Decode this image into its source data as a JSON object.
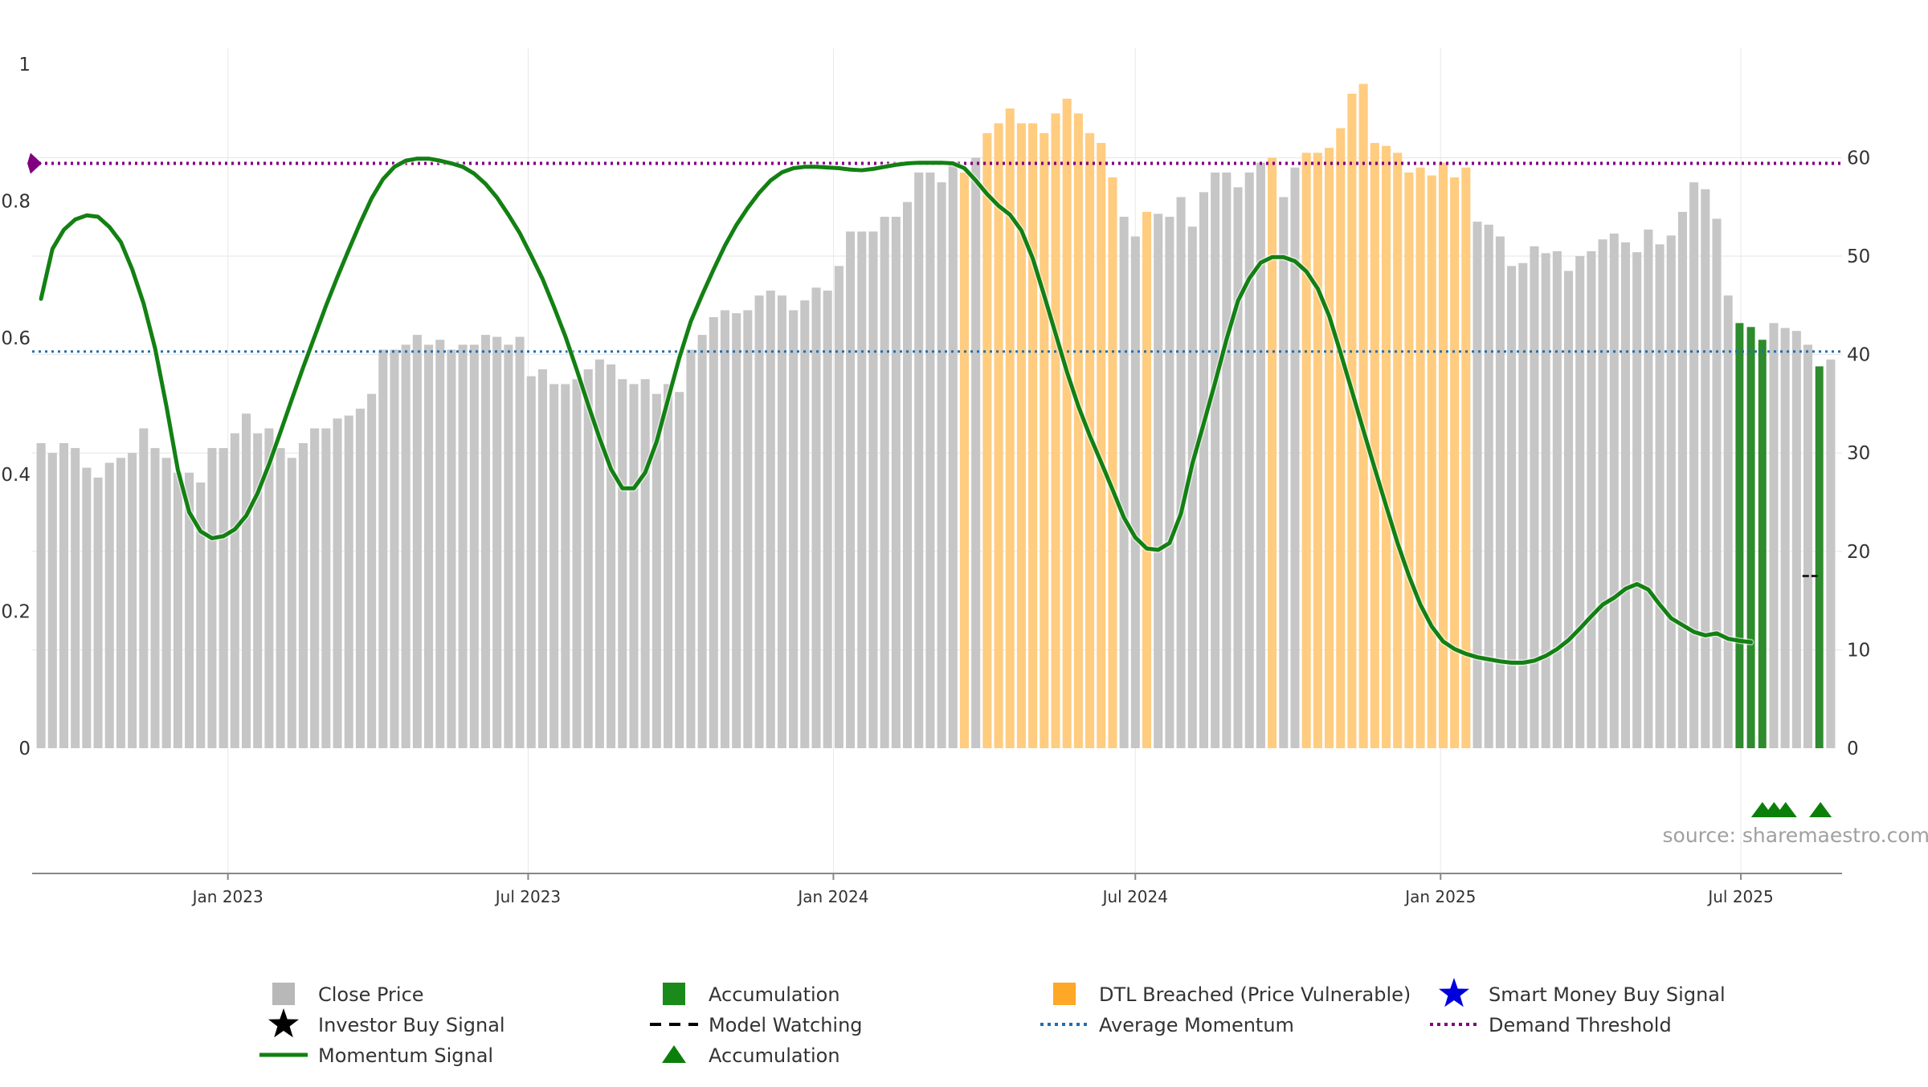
{
  "chart_data": {
    "type": "bar",
    "source_note": "source: sharemaestro.com",
    "x_axis": {
      "ticks": [
        {
          "label": "Jan 2023",
          "date": "2023-01-01"
        },
        {
          "label": "Jul 2023",
          "date": "2023-07-01"
        },
        {
          "label": "Jan 2024",
          "date": "2024-01-01"
        },
        {
          "label": "Jul 2024",
          "date": "2024-07-01"
        },
        {
          "label": "Jan 2025",
          "date": "2025-01-01"
        },
        {
          "label": "Jul 2025",
          "date": "2025-07-01"
        }
      ],
      "start_date": "2022-09-05",
      "end_date": "2025-08-31"
    },
    "y_left": {
      "ylim": [
        0,
        1
      ],
      "ticks": [
        {
          "label": "0",
          "value": 0
        },
        {
          "label": "0.2",
          "value": 0.2
        },
        {
          "label": "0.4",
          "value": 0.4
        },
        {
          "label": "0.6",
          "value": 0.6
        },
        {
          "label": "0.8",
          "value": 0.8
        },
        {
          "label": "1",
          "value": 1
        }
      ]
    },
    "y_right": {
      "ylim": [
        0,
        69.5
      ],
      "ticks": [
        {
          "label": "0",
          "value": 0
        },
        {
          "label": "10",
          "value": 10
        },
        {
          "label": "20",
          "value": 20
        },
        {
          "label": "30",
          "value": 30
        },
        {
          "label": "40",
          "value": 40
        },
        {
          "label": "50",
          "value": 50
        },
        {
          "label": "60",
          "value": 60
        }
      ]
    },
    "colors": {
      "close_price": "#c6c6c6",
      "dtl_breached": "#ffcc80",
      "accumulation": "#2e8b2e",
      "momentum": "#138013",
      "average_momentum": "#1f6fb0",
      "demand_threshold": "#800080",
      "grid": "#e6e6e6"
    },
    "close_price": [
      31,
      30,
      31,
      30.5,
      28.5,
      27.5,
      29,
      29.5,
      30,
      32.5,
      30.5,
      29.5,
      28,
      28,
      27,
      30.5,
      30.5,
      32,
      34,
      32,
      32.5,
      30.5,
      29.5,
      31,
      32.5,
      32.5,
      33.5,
      33.8,
      34.5,
      36,
      40.5,
      40.5,
      41,
      42,
      41,
      41.5,
      40.5,
      41,
      41,
      42,
      41.8,
      41,
      41.8,
      37.8,
      38.5,
      37,
      37,
      37.5,
      38.5,
      39.5,
      39,
      37.5,
      37,
      37.5,
      36,
      37,
      36.2,
      40.5,
      42,
      43.8,
      44.5,
      44.2,
      44.5,
      46,
      46.5,
      46,
      44.5,
      45.5,
      46.8,
      46.5,
      49,
      52.5,
      52.5,
      52.5,
      54,
      54,
      55.5,
      58.5,
      58.5,
      57.5,
      59.5,
      58.5,
      60,
      62.5,
      63.5,
      65,
      63.5,
      63.5,
      62.5,
      64.5,
      66,
      64.5,
      62.5,
      61.5,
      58,
      54,
      52,
      54.5,
      54.3,
      54,
      56,
      53,
      56.5,
      58.5,
      58.5,
      57,
      58.5,
      59.5,
      60,
      56,
      59,
      60.5,
      60.5,
      61,
      63,
      66.5,
      67.5,
      61.5,
      61.2,
      60.5,
      58.5,
      59,
      58.2,
      59.5,
      58,
      59,
      53.5,
      53.2,
      52,
      49,
      49.3,
      51,
      50.3,
      50.5,
      48.5,
      50,
      50.5,
      51.7,
      52.3,
      51.4,
      50.4,
      52.7,
      51.2,
      52.1,
      54.5,
      57.5,
      56.8,
      53.8,
      46,
      43.2,
      42.8,
      41.5,
      43.2,
      42.7,
      42.4,
      41,
      38.8,
      39.5
    ],
    "dtl_breached_indices": [
      81,
      83,
      84,
      85,
      86,
      87,
      88,
      89,
      90,
      91,
      92,
      93,
      94,
      97,
      108,
      111,
      112,
      113,
      114,
      115,
      116,
      117,
      118,
      119,
      120,
      121,
      122,
      123,
      124,
      125
    ],
    "accumulation_indices": [
      149,
      150,
      151,
      156
    ],
    "momentum_signal": [
      0.657,
      0.73,
      0.758,
      0.773,
      0.779,
      0.777,
      0.762,
      0.74,
      0.7,
      0.65,
      0.585,
      0.5,
      0.407,
      0.345,
      0.317,
      0.307,
      0.31,
      0.32,
      0.34,
      0.373,
      0.415,
      0.462,
      0.51,
      0.557,
      0.602,
      0.647,
      0.689,
      0.729,
      0.768,
      0.804,
      0.832,
      0.85,
      0.859,
      0.862,
      0.862,
      0.859,
      0.855,
      0.85,
      0.84,
      0.825,
      0.805,
      0.78,
      0.753,
      0.72,
      0.686,
      0.645,
      0.602,
      0.553,
      0.502,
      0.453,
      0.408,
      0.38,
      0.38,
      0.403,
      0.448,
      0.51,
      0.571,
      0.624,
      0.663,
      0.7,
      0.735,
      0.765,
      0.79,
      0.812,
      0.83,
      0.842,
      0.848,
      0.85,
      0.85,
      0.849,
      0.848,
      0.846,
      0.845,
      0.847,
      0.85,
      0.853,
      0.855,
      0.856,
      0.856,
      0.856,
      0.855,
      0.848,
      0.83,
      0.81,
      0.793,
      0.78,
      0.757,
      0.716,
      0.662,
      0.606,
      0.55,
      0.5,
      0.457,
      0.418,
      0.378,
      0.337,
      0.308,
      0.292,
      0.29,
      0.3,
      0.343,
      0.416,
      0.475,
      0.535,
      0.598,
      0.654,
      0.687,
      0.71,
      0.718,
      0.718,
      0.712,
      0.697,
      0.672,
      0.632,
      0.578,
      0.522,
      0.465,
      0.409,
      0.354,
      0.3,
      0.252,
      0.21,
      0.178,
      0.156,
      0.145,
      0.138,
      0.133,
      0.13,
      0.127,
      0.125,
      0.125,
      0.128,
      0.135,
      0.145,
      0.158,
      0.175,
      0.193,
      0.21,
      0.22,
      0.233,
      0.24,
      0.232,
      0.21,
      0.19,
      0.18,
      0.17,
      0.165,
      0.168,
      0.16,
      0.157,
      0.155
    ],
    "model_watching": {
      "date": "2025-08-12",
      "value": 17.5
    },
    "average_momentum": 0.58,
    "demand_threshold": 0.855,
    "accumulation_triangles": [
      "2025-07-14",
      "2025-07-21",
      "2025-07-28",
      "2025-08-18"
    ],
    "legend": [
      {
        "label": "Close Price",
        "marker": "square",
        "color": "#b8b8b8"
      },
      {
        "label": "Accumulation",
        "marker": "square",
        "color": "#1a8a1a"
      },
      {
        "label": "DTL Breached (Price Vulnerable)",
        "marker": "square",
        "color": "#ffa726"
      },
      {
        "label": "Smart Money Buy Signal",
        "marker": "star",
        "color": "#0000dd"
      },
      {
        "label": "Investor Buy Signal",
        "marker": "star",
        "color": "#000000"
      },
      {
        "label": "Model Watching",
        "marker": "dash",
        "color": "#000000"
      },
      {
        "label": "Average Momentum",
        "marker": "dotted",
        "color": "#1f6fb0"
      },
      {
        "label": "Demand Threshold",
        "marker": "dotted",
        "color": "#800080"
      },
      {
        "label": "Momentum Signal",
        "marker": "line",
        "color": "#138013"
      },
      {
        "label": "Accumulation",
        "marker": "triangle",
        "color": "#0a800a"
      }
    ]
  }
}
